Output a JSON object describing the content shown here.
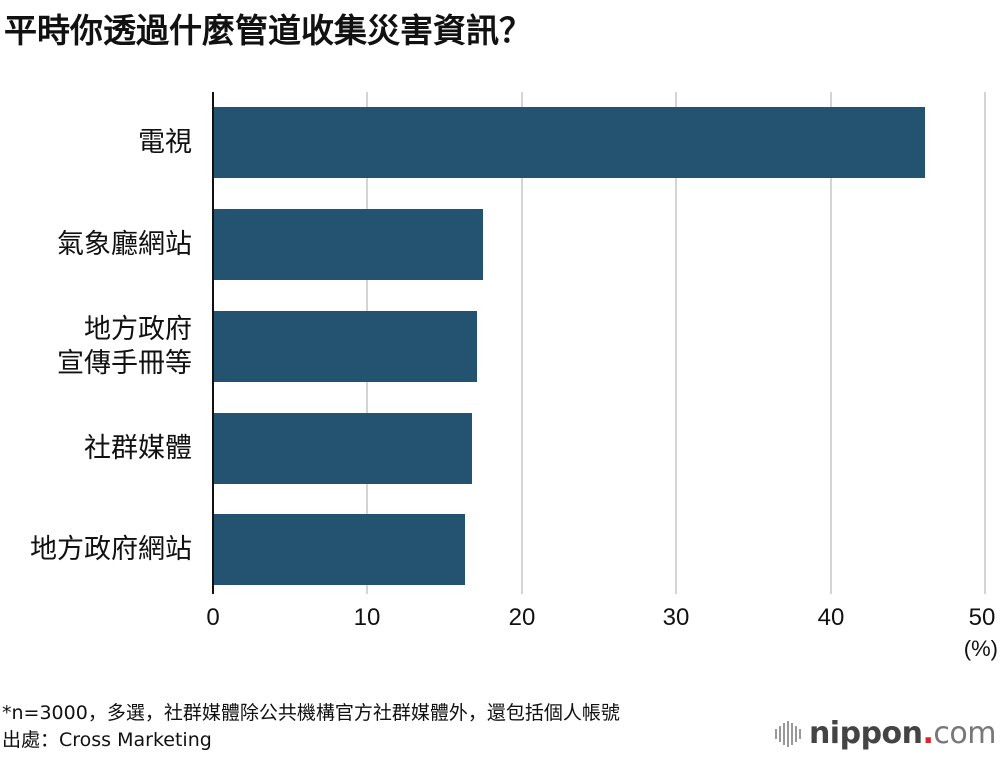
{
  "title": "平時你透過什麼管道收集災害資訊？",
  "chart_data": {
    "type": "bar",
    "orientation": "horizontal",
    "title": "平時你透過什麼管道收集災害資訊？",
    "categories": [
      "電視",
      "氣象廳網站",
      "地方政府宣傳手冊等",
      "社群媒體",
      "地方政府網站"
    ],
    "category_lines": [
      [
        "電視"
      ],
      [
        "氣象廳網站"
      ],
      [
        "地方政府",
        "宣傳手冊等"
      ],
      [
        "社群媒體"
      ],
      [
        "地方政府網站"
      ]
    ],
    "values": [
      46.1,
      17.5,
      17.1,
      16.8,
      16.3
    ],
    "xlabel": "(%)",
    "ylabel": "",
    "xlim": [
      0,
      50
    ],
    "xticks": [
      "0",
      "10",
      "20",
      "30",
      "40",
      "50"
    ],
    "grid": true,
    "bar_color": "#235370"
  },
  "axis": {
    "unit": "(%)",
    "ticks": [
      "0",
      "10",
      "20",
      "30",
      "40",
      "50"
    ]
  },
  "footnote": {
    "note": "*n=3000，多選，社群媒體除公共機構官方社群媒體外，還包括個人帳號",
    "source": "出處：Cross Marketing"
  },
  "logo": {
    "name": "nippon",
    "dot": ".",
    "suffix": "com"
  }
}
